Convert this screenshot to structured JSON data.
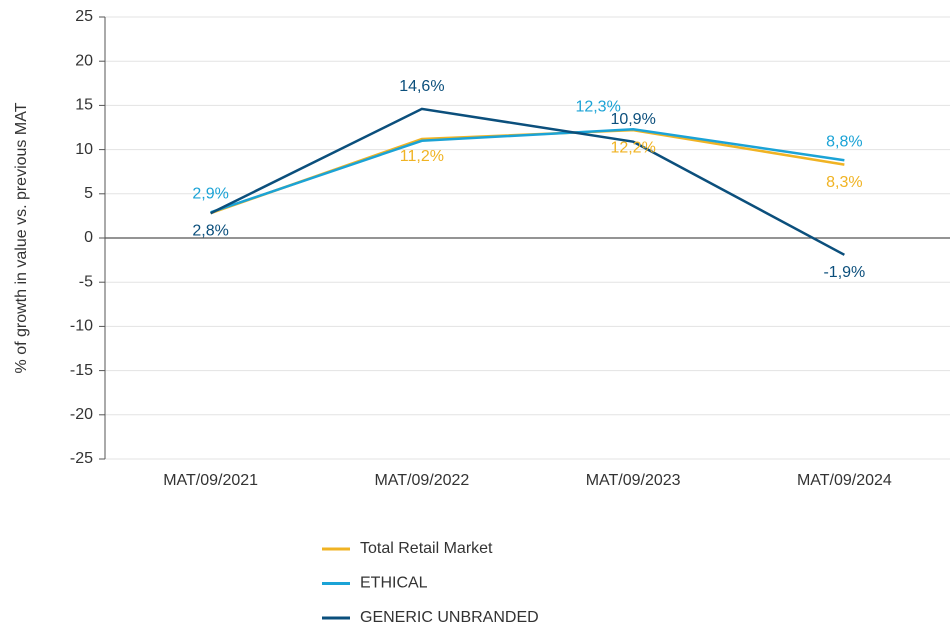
{
  "chart_data": {
    "type": "line",
    "y_label": "% of growth in value vs. previous MAT",
    "categories": [
      "MAT/09/2021",
      "MAT/09/2022",
      "MAT/09/2023",
      "MAT/09/2024"
    ],
    "series": [
      {
        "name": "Total Retail Market",
        "color": "#f0b323",
        "values": [
          2.8,
          11.2,
          12.2,
          8.3
        ],
        "value_labels": [
          null,
          "11,2%",
          "12,2%",
          "8,3%"
        ]
      },
      {
        "name": "ETHICAL",
        "color": "#1ba3d6",
        "values": [
          2.9,
          11.0,
          12.3,
          8.8
        ],
        "value_labels": [
          "2,9%",
          null,
          "12,3%",
          "8,8%"
        ]
      },
      {
        "name": "GENERIC UNBRANDED",
        "color": "#0b4f7c",
        "values": [
          2.8,
          14.6,
          10.9,
          -1.9
        ],
        "value_labels": [
          "2,8%",
          "14,6%",
          "10,9%",
          "-1,9%"
        ]
      }
    ],
    "ylim": [
      -25,
      25
    ],
    "yticks": [
      -25,
      -20,
      -15,
      -10,
      -5,
      0,
      5,
      10,
      15,
      20,
      25
    ],
    "grid": true,
    "legend": "bottom"
  }
}
